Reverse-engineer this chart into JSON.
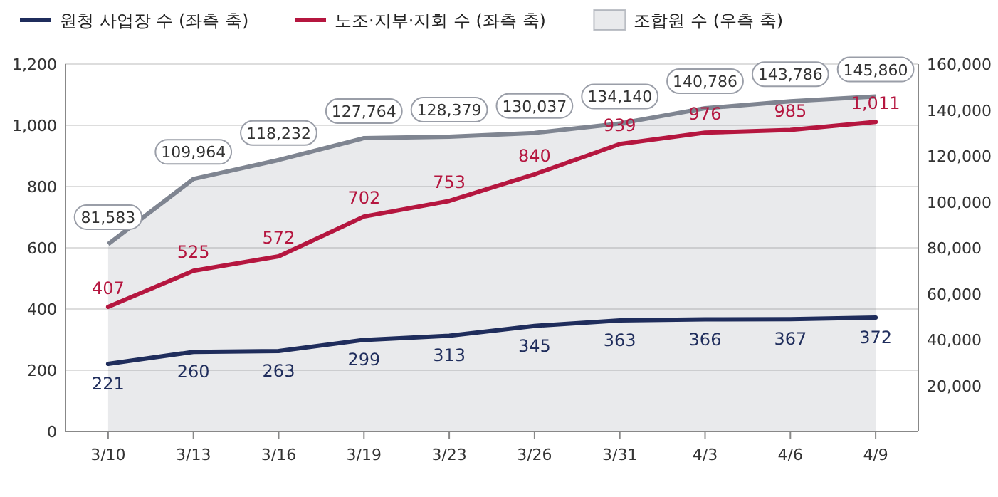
{
  "chart_data": {
    "type": "line",
    "categories": [
      "3/10",
      "3/13",
      "3/16",
      "3/19",
      "3/23",
      "3/26",
      "3/31",
      "4/3",
      "4/6",
      "4/9"
    ],
    "series": [
      {
        "name": "원청 사업장 수 (좌측 축)",
        "color": "#1f2d5c",
        "values": [
          221,
          260,
          263,
          299,
          313,
          345,
          363,
          366,
          367,
          372
        ],
        "value_labels": [
          "221",
          "260",
          "263",
          "299",
          "313",
          "345",
          "363",
          "366",
          "367",
          "372"
        ]
      },
      {
        "name": "노조·지부·지회 수 (좌측 축)",
        "color": "#b5163f",
        "values": [
          407,
          525,
          572,
          702,
          753,
          840,
          939,
          976,
          985,
          1011
        ],
        "value_labels": [
          "407",
          "525",
          "572",
          "702",
          "753",
          "840",
          "939",
          "976",
          "985",
          "1,011"
        ]
      },
      {
        "name": "조합원 수 (우측 축)",
        "type": "area",
        "axis": "y2",
        "color": "#7f8591",
        "values": [
          81583,
          109964,
          118232,
          127764,
          128379,
          130037,
          134140,
          140786,
          143786,
          145860
        ],
        "value_labels": [
          "81,583",
          "109,964",
          "118,232",
          "127,764",
          "128,379",
          "130,037",
          "134,140",
          "140,786",
          "143,786",
          "145,860"
        ]
      }
    ],
    "ylim": [
      0,
      1200
    ],
    "yticks": [
      0,
      200,
      400,
      600,
      800,
      {
        "value": 1000,
        "label": "1,000"
      },
      {
        "value": 1200,
        "label": "1,200"
      }
    ],
    "y2lim": [
      0,
      160000
    ],
    "y2ticks": [
      {
        "value": 20000,
        "label": "20,000"
      },
      {
        "value": 40000,
        "label": "40,000"
      },
      {
        "value": 60000,
        "label": "60,000"
      },
      {
        "value": 80000,
        "label": "80,000"
      },
      {
        "value": 100000,
        "label": "100,000"
      },
      {
        "value": 120000,
        "label": "120,000"
      },
      {
        "value": 140000,
        "label": "140,000"
      },
      {
        "value": 160000,
        "label": "160,000"
      }
    ],
    "grid": "y",
    "legend": "top"
  }
}
